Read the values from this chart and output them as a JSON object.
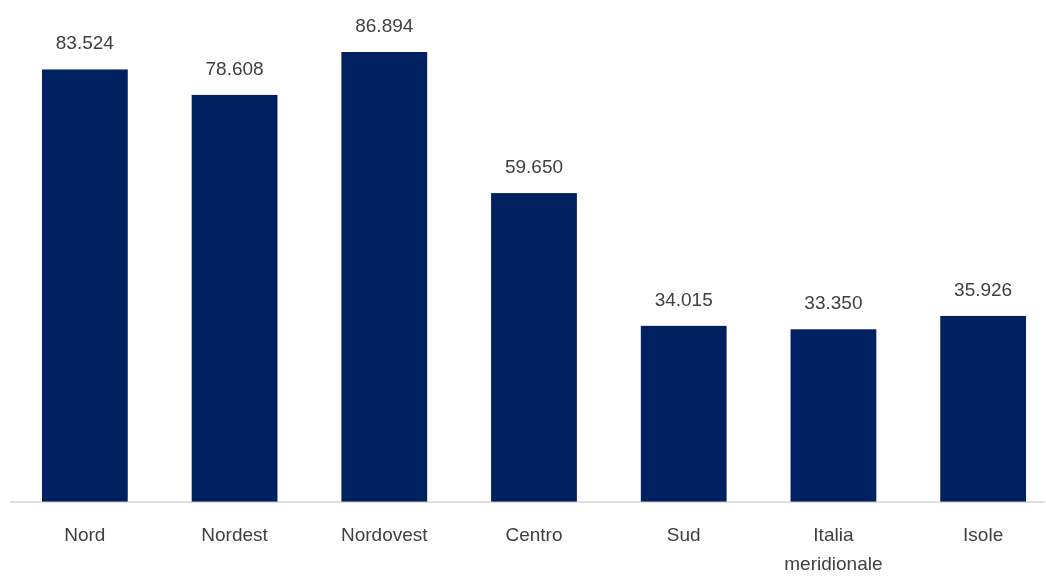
{
  "chart_data": {
    "type": "bar",
    "categories": [
      "Nord",
      "Nordest",
      "Nordovest",
      "Centro",
      "Sud",
      "Italia meridionale",
      "Isole"
    ],
    "values": [
      83524,
      78608,
      86894,
      59650,
      34015,
      33350,
      35926
    ],
    "value_labels": [
      "83.524",
      "78.608",
      "86.894",
      "59.650",
      "34.015",
      "33.350",
      "35.926"
    ],
    "color": "#002060"
  }
}
